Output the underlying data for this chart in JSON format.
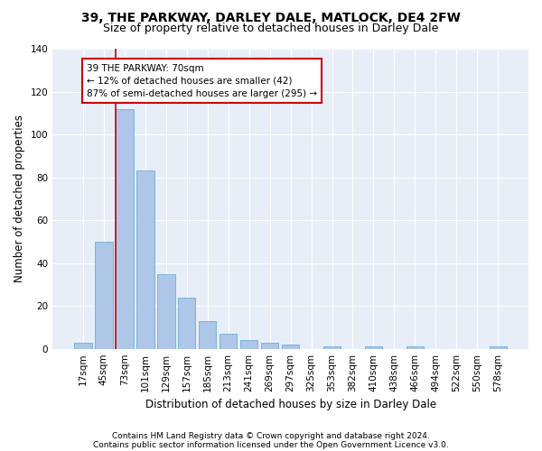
{
  "title1": "39, THE PARKWAY, DARLEY DALE, MATLOCK, DE4 2FW",
  "title2": "Size of property relative to detached houses in Darley Dale",
  "xlabel": "Distribution of detached houses by size in Darley Dale",
  "ylabel": "Number of detached properties",
  "footnote1": "Contains HM Land Registry data © Crown copyright and database right 2024.",
  "footnote2": "Contains public sector information licensed under the Open Government Licence v3.0.",
  "bar_color": "#aec6e8",
  "bar_edge_color": "#6baed6",
  "background_color": "#e8eef8",
  "annotation_box_color": "#cc0000",
  "vline_color": "#cc0000",
  "categories": [
    "17sqm",
    "45sqm",
    "73sqm",
    "101sqm",
    "129sqm",
    "157sqm",
    "185sqm",
    "213sqm",
    "241sqm",
    "269sqm",
    "297sqm",
    "325sqm",
    "353sqm",
    "382sqm",
    "410sqm",
    "438sqm",
    "466sqm",
    "494sqm",
    "522sqm",
    "550sqm",
    "578sqm"
  ],
  "values": [
    3,
    50,
    112,
    83,
    35,
    24,
    13,
    7,
    4,
    3,
    2,
    0,
    1,
    0,
    1,
    0,
    1,
    0,
    0,
    0,
    1
  ],
  "vline_x": 1.575,
  "annotation_text": "39 THE PARKWAY: 70sqm\n← 12% of detached houses are smaller (42)\n87% of semi-detached houses are larger (295) →",
  "ylim": [
    0,
    140
  ],
  "yticks": [
    0,
    20,
    40,
    60,
    80,
    100,
    120,
    140
  ],
  "title1_fontsize": 10,
  "title2_fontsize": 9,
  "xlabel_fontsize": 8.5,
  "ylabel_fontsize": 8.5,
  "tick_fontsize": 7.5,
  "annotation_fontsize": 7.5,
  "footnote_fontsize": 6.5
}
